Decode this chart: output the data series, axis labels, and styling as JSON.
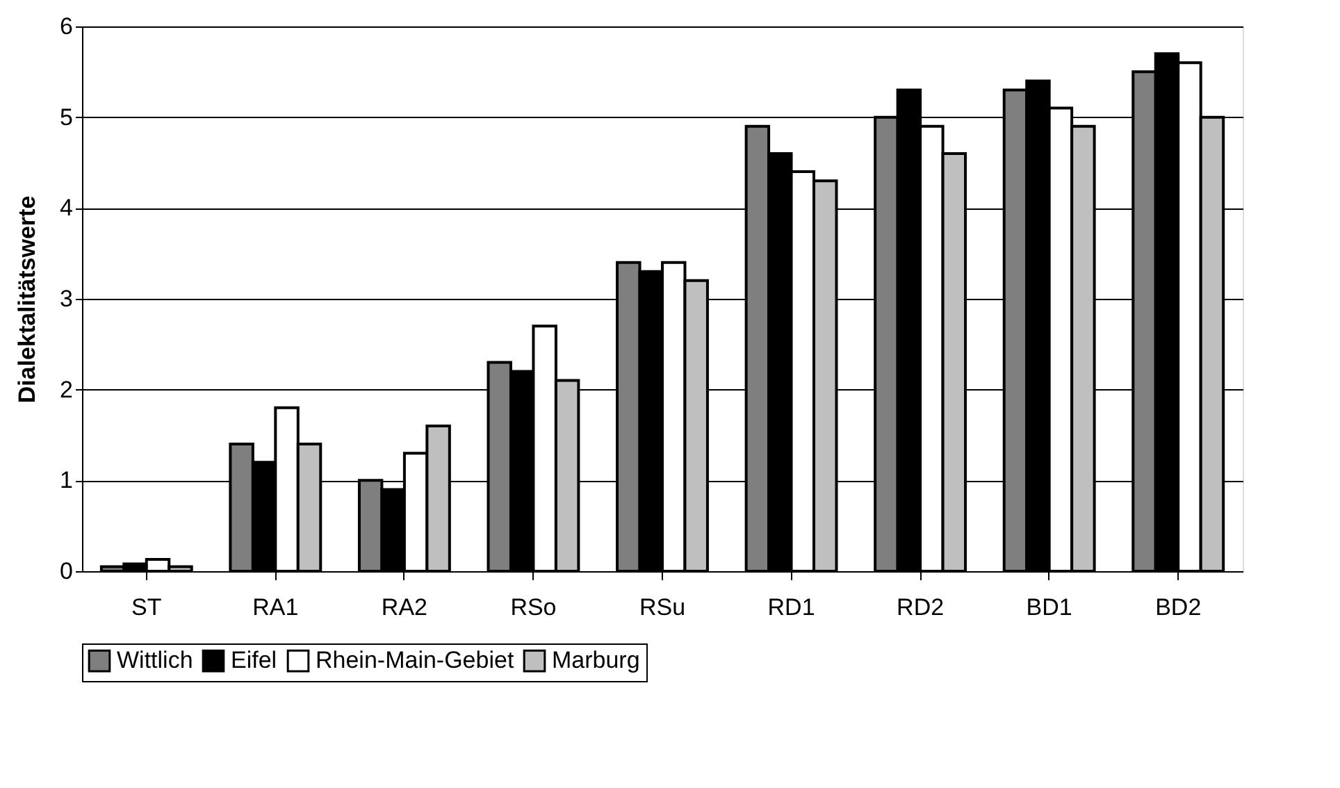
{
  "chart_data": {
    "type": "bar",
    "ylabel": "Dialektalitätswerte",
    "categories": [
      "ST",
      "RA1",
      "RA2",
      "RSo",
      "RSu",
      "RD1",
      "RD2",
      "BD1",
      "BD2"
    ],
    "series": [
      {
        "name": "Wittlich",
        "color": "#7f7f7f",
        "values": [
          0.05,
          1.4,
          1.0,
          2.3,
          3.4,
          4.9,
          5.0,
          5.3,
          5.5
        ]
      },
      {
        "name": "Eifel",
        "color": "#000000",
        "values": [
          0.08,
          1.2,
          0.9,
          2.2,
          3.3,
          4.6,
          5.3,
          5.4,
          5.7
        ]
      },
      {
        "name": "Rhein-Main-Gebiet",
        "color": "#ffffff",
        "values": [
          0.13,
          1.8,
          1.3,
          2.7,
          3.4,
          4.4,
          4.9,
          5.1,
          5.6
        ]
      },
      {
        "name": "Marburg",
        "color": "#bfbfbf",
        "values": [
          0.05,
          1.4,
          1.6,
          2.1,
          3.2,
          4.3,
          4.6,
          4.9,
          5.0
        ]
      }
    ],
    "ylim": [
      0,
      6
    ],
    "yticks": [
      0,
      1,
      2,
      3,
      4,
      5,
      6
    ],
    "grid": "y",
    "legend": "bottom"
  }
}
